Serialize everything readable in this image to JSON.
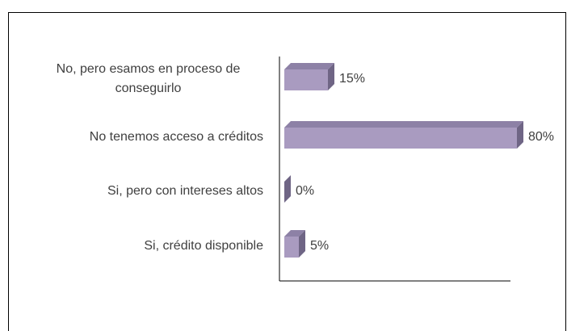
{
  "chart_data": {
    "type": "bar3d_horizontal",
    "categories": [
      "No, pero esamos en proceso de conseguirlo",
      "No tenemos acceso a créditos",
      "Si, pero con intereses altos",
      "Si, crédito disponible"
    ],
    "values": [
      15,
      80,
      0,
      5
    ],
    "value_labels": [
      "15%",
      "80%",
      "0%",
      "5%"
    ],
    "color": "#a99bc0",
    "xlim": [
      0,
      80
    ]
  }
}
